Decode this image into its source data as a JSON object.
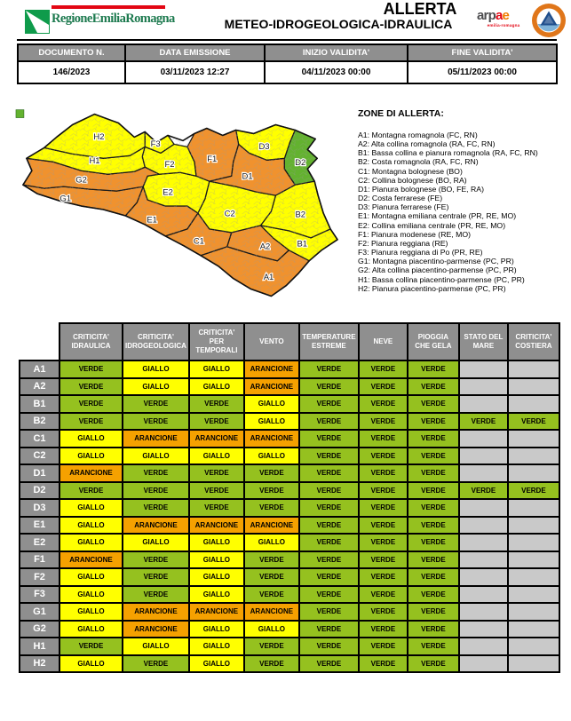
{
  "colors": {
    "verde": "#95C11F",
    "giallo": "#FFFF00",
    "arancione": "#F5A100",
    "map_verde": "#63B22F",
    "map_giallo": "#FFFF00",
    "map_arancione": "#F0922E",
    "header_gray": "#8F8F8F",
    "empty_gray": "#C9C9C9",
    "logo_red": "#E30613",
    "logo_green": "#0F9B4B",
    "arpae_dark": "#4D4D4F",
    "arpae_red": "#E30613",
    "arpae_orange": "#F07D00",
    "pc_orange": "#E0761A",
    "pc_blue": "#1F4E8C",
    "pc_lightblue": "#7FB3D9"
  },
  "header": {
    "region_logo_text": "RegioneEmiliaRomagna",
    "title_line1": "ALLERTA",
    "title_line2": "METEO-IDROGEOLOGICA-IDRAULICA",
    "arpae": {
      "prefix": "arp",
      "a": "a",
      "e": "e",
      "subtitle": "emilia-romagna"
    }
  },
  "doc_table": {
    "headers": [
      "DOCUMENTO N.",
      "DATA EMISSIONE",
      "INIZIO VALIDITA'",
      "FINE VALIDITA'"
    ],
    "values": [
      "146/2023",
      "03/11/2023 12:27",
      "04/11/2023 00:00",
      "05/11/2023 00:00"
    ]
  },
  "map": {
    "zones": [
      {
        "id": "A1",
        "level": "arancione"
      },
      {
        "id": "A2",
        "level": "arancione"
      },
      {
        "id": "B1",
        "level": "giallo"
      },
      {
        "id": "B2",
        "level": "giallo"
      },
      {
        "id": "C1",
        "level": "arancione"
      },
      {
        "id": "C2",
        "level": "giallo"
      },
      {
        "id": "D1",
        "level": "arancione"
      },
      {
        "id": "D2",
        "level": "verde"
      },
      {
        "id": "D3",
        "level": "giallo"
      },
      {
        "id": "E1",
        "level": "arancione"
      },
      {
        "id": "E2",
        "level": "giallo"
      },
      {
        "id": "F1",
        "level": "arancione"
      },
      {
        "id": "F2",
        "level": "giallo"
      },
      {
        "id": "F3",
        "level": "giallo"
      },
      {
        "id": "G1",
        "level": "arancione"
      },
      {
        "id": "G2",
        "level": "arancione"
      },
      {
        "id": "H1",
        "level": "giallo"
      },
      {
        "id": "H2",
        "level": "giallo"
      }
    ]
  },
  "zone_legend": {
    "title": "ZONE DI ALLERTA:",
    "items": [
      "A1: Montagna romagnola (FC, RN)",
      "A2: Alta collina romagnola (RA, FC, RN)",
      "B1: Bassa collina e pianura romagnola (RA, FC, RN)",
      "B2: Costa romagnola (RA, FC, RN)",
      "C1: Montagna bolognese (BO)",
      "C2: Collina bolognese (BO, RA)",
      "D1: Pianura bolognese (BO, FE, RA)",
      "D2: Costa ferrarese (FE)",
      "D3: Pianura ferrarese (FE)",
      "E1: Montagna emiliana centrale (PR, RE, MO)",
      "E2: Collina emiliana centrale (PR, RE, MO)",
      "F1: Pianura modenese (RE, MO)",
      "F2: Pianura reggiana (RE)",
      "F3: Pianura reggiana di Po (PR, RE)",
      "G1: Montagna piacentino-parmense (PC, PR)",
      "G2: Alta collina piacentino-parmense (PC, PR)",
      "H1: Bassa collina piacentino-parmense (PC, PR)",
      "H2: Pianura piacentino-parmense (PC, PR)"
    ]
  },
  "alert_table": {
    "col_headers": [
      "CRITICITA' IDRAULICA",
      "CRITICITA' IDROGEOLOGICA",
      "CRITICITA' PER TEMPORALI",
      "VENTO",
      "TEMPERATURE ESTREME",
      "NEVE",
      "PIOGGIA CHE GELA",
      "STATO DEL MARE",
      "CRITICITA' COSTIERA"
    ],
    "rows": [
      {
        "zone": "A1",
        "cells": [
          "VERDE",
          "GIALLO",
          "GIALLO",
          "ARANCIONE",
          "VERDE",
          "VERDE",
          "VERDE",
          "",
          ""
        ]
      },
      {
        "zone": "A2",
        "cells": [
          "VERDE",
          "GIALLO",
          "GIALLO",
          "ARANCIONE",
          "VERDE",
          "VERDE",
          "VERDE",
          "",
          ""
        ]
      },
      {
        "zone": "B1",
        "cells": [
          "VERDE",
          "VERDE",
          "VERDE",
          "GIALLO",
          "VERDE",
          "VERDE",
          "VERDE",
          "",
          ""
        ]
      },
      {
        "zone": "B2",
        "cells": [
          "VERDE",
          "VERDE",
          "VERDE",
          "GIALLO",
          "VERDE",
          "VERDE",
          "VERDE",
          "VERDE",
          "VERDE"
        ]
      },
      {
        "zone": "C1",
        "cells": [
          "GIALLO",
          "ARANCIONE",
          "ARANCIONE",
          "ARANCIONE",
          "VERDE",
          "VERDE",
          "VERDE",
          "",
          ""
        ]
      },
      {
        "zone": "C2",
        "cells": [
          "GIALLO",
          "GIALLO",
          "GIALLO",
          "GIALLO",
          "VERDE",
          "VERDE",
          "VERDE",
          "",
          ""
        ]
      },
      {
        "zone": "D1",
        "cells": [
          "ARANCIONE",
          "VERDE",
          "VERDE",
          "VERDE",
          "VERDE",
          "VERDE",
          "VERDE",
          "",
          ""
        ]
      },
      {
        "zone": "D2",
        "cells": [
          "VERDE",
          "VERDE",
          "VERDE",
          "VERDE",
          "VERDE",
          "VERDE",
          "VERDE",
          "VERDE",
          "VERDE"
        ]
      },
      {
        "zone": "D3",
        "cells": [
          "GIALLO",
          "VERDE",
          "VERDE",
          "VERDE",
          "VERDE",
          "VERDE",
          "VERDE",
          "",
          ""
        ]
      },
      {
        "zone": "E1",
        "cells": [
          "GIALLO",
          "ARANCIONE",
          "ARANCIONE",
          "ARANCIONE",
          "VERDE",
          "VERDE",
          "VERDE",
          "",
          ""
        ]
      },
      {
        "zone": "E2",
        "cells": [
          "GIALLO",
          "GIALLO",
          "GIALLO",
          "GIALLO",
          "VERDE",
          "VERDE",
          "VERDE",
          "",
          ""
        ]
      },
      {
        "zone": "F1",
        "cells": [
          "ARANCIONE",
          "VERDE",
          "GIALLO",
          "VERDE",
          "VERDE",
          "VERDE",
          "VERDE",
          "",
          ""
        ]
      },
      {
        "zone": "F2",
        "cells": [
          "GIALLO",
          "VERDE",
          "GIALLO",
          "VERDE",
          "VERDE",
          "VERDE",
          "VERDE",
          "",
          ""
        ]
      },
      {
        "zone": "F3",
        "cells": [
          "GIALLO",
          "VERDE",
          "GIALLO",
          "VERDE",
          "VERDE",
          "VERDE",
          "VERDE",
          "",
          ""
        ]
      },
      {
        "zone": "G1",
        "cells": [
          "GIALLO",
          "ARANCIONE",
          "ARANCIONE",
          "ARANCIONE",
          "VERDE",
          "VERDE",
          "VERDE",
          "",
          ""
        ]
      },
      {
        "zone": "G2",
        "cells": [
          "GIALLO",
          "ARANCIONE",
          "GIALLO",
          "GIALLO",
          "VERDE",
          "VERDE",
          "VERDE",
          "",
          ""
        ]
      },
      {
        "zone": "H1",
        "cells": [
          "VERDE",
          "GIALLO",
          "GIALLO",
          "VERDE",
          "VERDE",
          "VERDE",
          "VERDE",
          "",
          ""
        ]
      },
      {
        "zone": "H2",
        "cells": [
          "GIALLO",
          "VERDE",
          "GIALLO",
          "VERDE",
          "VERDE",
          "VERDE",
          "VERDE",
          "",
          ""
        ]
      }
    ]
  }
}
